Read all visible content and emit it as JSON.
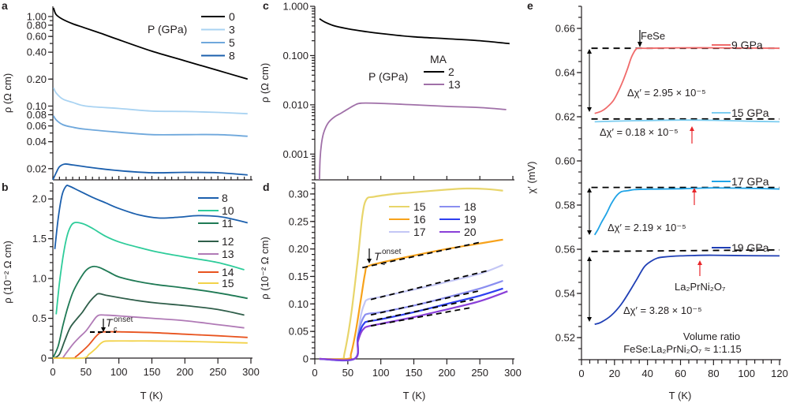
{
  "chart_data": [
    {
      "panel": "a",
      "type": "line",
      "xlabel": "T (K)",
      "ylabel": "ρ (Ω cm)",
      "yscale": "log",
      "xlim": [
        0,
        300
      ],
      "ylim": [
        0.015,
        1.3
      ],
      "yticks": [
        "1.00",
        "0.80",
        "0.60",
        "0.40",
        "0.20",
        "0.10",
        "0.08",
        "0.06",
        "0.04",
        "0.02"
      ],
      "ytick_values": [
        1.0,
        0.8,
        0.6,
        0.4,
        0.2,
        0.1,
        0.08,
        0.06,
        0.04,
        0.02
      ],
      "legend_title": "P (GPa)",
      "legend_position": "top-right",
      "series": [
        {
          "name": "0",
          "color": "#000000",
          "x": [
            1,
            5,
            15,
            30,
            50,
            75,
            100,
            150,
            200,
            250,
            295
          ],
          "y": [
            1.25,
            1.05,
            0.93,
            0.83,
            0.74,
            0.64,
            0.55,
            0.41,
            0.32,
            0.25,
            0.2
          ]
        },
        {
          "name": "3",
          "color": "#a9d3f2",
          "x": [
            1,
            5,
            15,
            30,
            50,
            100,
            150,
            200,
            250,
            295
          ],
          "y": [
            0.16,
            0.14,
            0.12,
            0.11,
            0.1,
            0.094,
            0.088,
            0.087,
            0.085,
            0.082
          ]
        },
        {
          "name": "5",
          "color": "#6fa8dc",
          "x": [
            1,
            5,
            15,
            30,
            50,
            100,
            150,
            200,
            250,
            295
          ],
          "y": [
            0.078,
            0.07,
            0.062,
            0.058,
            0.055,
            0.051,
            0.048,
            0.048,
            0.048,
            0.046
          ]
        },
        {
          "name": "8",
          "color": "#1b5fad",
          "x": [
            0,
            5,
            10,
            18,
            30,
            60,
            100,
            150,
            200,
            250,
            295
          ],
          "y": [
            0.015,
            0.018,
            0.021,
            0.0225,
            0.022,
            0.0205,
            0.019,
            0.018,
            0.0182,
            0.018,
            0.017
          ]
        }
      ]
    },
    {
      "panel": "b",
      "type": "line",
      "xlabel": "T (K)",
      "ylabel": "ρ (10⁻² Ω cm)",
      "xlim": [
        0,
        300
      ],
      "ylim": [
        0,
        2.2
      ],
      "xticks": [
        "0",
        "50",
        "100",
        "150",
        "200",
        "250",
        "300"
      ],
      "yticks": [
        "0",
        "0.5",
        "1.0",
        "1.5",
        "2.0"
      ],
      "legend_position": "right",
      "annotation": "T_c^onset",
      "series": [
        {
          "name": "8",
          "color": "#1b5fad",
          "x": [
            3,
            8,
            14,
            20,
            25,
            40,
            60,
            80,
            100,
            130,
            160,
            190,
            220,
            250,
            270,
            295
          ],
          "y": [
            1.37,
            1.75,
            2.05,
            2.16,
            2.16,
            2.1,
            2.02,
            1.95,
            1.88,
            1.8,
            1.76,
            1.77,
            1.79,
            1.78,
            1.75,
            1.7
          ]
        },
        {
          "name": "10",
          "color": "#2ecc9a",
          "x": [
            5,
            10,
            15,
            20,
            25,
            32,
            45,
            60,
            80,
            100,
            130,
            160,
            200,
            250,
            290
          ],
          "y": [
            0.55,
            0.95,
            1.25,
            1.48,
            1.62,
            1.7,
            1.69,
            1.63,
            1.53,
            1.46,
            1.39,
            1.33,
            1.27,
            1.2,
            1.11
          ]
        },
        {
          "name": "11",
          "color": "#1f7a55",
          "x": [
            0,
            8,
            15,
            22,
            30,
            40,
            50,
            60,
            70,
            85,
            100,
            130,
            160,
            200,
            250,
            295
          ],
          "y": [
            0,
            0.15,
            0.4,
            0.62,
            0.82,
            0.98,
            1.1,
            1.15,
            1.14,
            1.08,
            1.02,
            0.96,
            0.92,
            0.88,
            0.82,
            0.75
          ]
        },
        {
          "name": "12",
          "color": "#2f5e4a",
          "x": [
            2,
            10,
            18,
            26,
            35,
            45,
            55,
            65,
            70,
            80,
            100,
            130,
            160,
            200,
            250,
            290
          ],
          "y": [
            0,
            0.05,
            0.22,
            0.38,
            0.48,
            0.58,
            0.7,
            0.79,
            0.81,
            0.79,
            0.76,
            0.72,
            0.69,
            0.66,
            0.61,
            0.54
          ]
        },
        {
          "name": "13",
          "color": "#b07ab6",
          "x": [
            15,
            20,
            30,
            40,
            50,
            58,
            65,
            70,
            80,
            100,
            150,
            200,
            250,
            290
          ],
          "y": [
            0,
            0.06,
            0.17,
            0.26,
            0.34,
            0.43,
            0.51,
            0.54,
            0.54,
            0.53,
            0.5,
            0.47,
            0.42,
            0.38
          ]
        },
        {
          "name": "14",
          "color": "#e8531e",
          "x": [
            0,
            30,
            35,
            45,
            55,
            65,
            72,
            80,
            100,
            150,
            200,
            250,
            295
          ],
          "y": [
            0,
            0,
            0.02,
            0.09,
            0.17,
            0.27,
            0.32,
            0.33,
            0.33,
            0.32,
            0.3,
            0.28,
            0.26
          ]
        },
        {
          "name": "15",
          "color": "#f2d24a",
          "x": [
            0,
            45,
            55,
            65,
            72,
            78,
            90,
            120,
            150,
            200,
            250,
            295
          ],
          "y": [
            0,
            0,
            0.05,
            0.12,
            0.18,
            0.21,
            0.215,
            0.215,
            0.215,
            0.21,
            0.2,
            0.19
          ]
        }
      ]
    },
    {
      "panel": "c",
      "type": "line",
      "xlabel": "",
      "ylabel": "ρ (Ω cm)",
      "yscale": "log",
      "xlim": [
        0,
        300
      ],
      "ylim": [
        0.0003,
        1.0
      ],
      "yticks": [
        "1.000",
        "0.100",
        "0.010",
        "0.001"
      ],
      "ytick_values": [
        1.0,
        0.1,
        0.01,
        0.001
      ],
      "legend_title": "P (GPa)",
      "legend_subtitle": "MA",
      "legend_position": "center-right",
      "series": [
        {
          "name": "2",
          "color": "#000000",
          "x": [
            7,
            15,
            30,
            50,
            75,
            100,
            150,
            200,
            250,
            295
          ],
          "y": [
            0.56,
            0.48,
            0.4,
            0.35,
            0.31,
            0.28,
            0.24,
            0.22,
            0.2,
            0.175
          ]
        },
        {
          "name": "13",
          "color": "#a070a8",
          "x": [
            7,
            8,
            10,
            13,
            17,
            22,
            30,
            40,
            50,
            60,
            70,
            100,
            150,
            200,
            250,
            290
          ],
          "y": [
            0.0003,
            0.0008,
            0.0016,
            0.0026,
            0.0036,
            0.0046,
            0.0057,
            0.0068,
            0.0082,
            0.0098,
            0.0108,
            0.0107,
            0.01,
            0.0093,
            0.0088,
            0.008
          ]
        }
      ]
    },
    {
      "panel": "d",
      "type": "line",
      "xlabel": "T (K)",
      "ylabel": "ρ (10⁻² Ω cm)",
      "xlim": [
        0,
        300
      ],
      "ylim": [
        0,
        0.32
      ],
      "xticks": [
        "0",
        "50",
        "100",
        "150",
        "200",
        "250",
        "300"
      ],
      "yticks": [
        "0",
        "0.05",
        "0.10",
        "0.15",
        "0.20",
        "0.25",
        "0.30"
      ],
      "legend_position": "top-right",
      "annotation": "T_c^onset",
      "series": [
        {
          "name": "15",
          "color": "#e8d56a",
          "x": [
            7,
            40,
            45,
            55,
            65,
            72,
            78,
            90,
            120,
            150,
            200,
            230,
            260,
            285
          ],
          "y": [
            0,
            0,
            0.01,
            0.08,
            0.18,
            0.26,
            0.29,
            0.295,
            0.3,
            0.303,
            0.308,
            0.31,
            0.309,
            0.306
          ]
        },
        {
          "name": "16",
          "color": "#f7a21b",
          "x": [
            7,
            50,
            55,
            62,
            70,
            76,
            80,
            100,
            150,
            200,
            250,
            285
          ],
          "y": [
            0,
            0,
            0.01,
            0.05,
            0.11,
            0.155,
            0.168,
            0.175,
            0.188,
            0.2,
            0.21,
            0.217
          ]
        },
        {
          "name": "17",
          "color": "#c3c6f5",
          "x": [
            7,
            60,
            65,
            70,
            75,
            80,
            100,
            150,
            200,
            250,
            285
          ],
          "y": [
            0,
            0,
            0.04,
            0.08,
            0.1,
            0.108,
            0.113,
            0.126,
            0.14,
            0.155,
            0.171
          ]
        },
        {
          "name": "18",
          "color": "#8a8ef0",
          "x": [
            7,
            60,
            65,
            70,
            75,
            80,
            100,
            150,
            200,
            250,
            285
          ],
          "y": [
            0,
            0,
            0.04,
            0.065,
            0.078,
            0.082,
            0.085,
            0.097,
            0.112,
            0.128,
            0.142
          ]
        },
        {
          "name": "19",
          "color": "#2e3ff0",
          "x": [
            7,
            60,
            65,
            70,
            75,
            80,
            100,
            150,
            200,
            250,
            285
          ],
          "y": [
            0,
            0,
            0.035,
            0.055,
            0.065,
            0.068,
            0.072,
            0.085,
            0.1,
            0.115,
            0.128
          ]
        },
        {
          "name": "20",
          "color": "#8a3fd8",
          "x": [
            7,
            60,
            65,
            70,
            75,
            80,
            100,
            150,
            200,
            250,
            292
          ],
          "y": [
            0,
            0,
            0.03,
            0.048,
            0.056,
            0.059,
            0.064,
            0.076,
            0.09,
            0.105,
            0.123
          ]
        }
      ],
      "fits": [
        {
          "x": [
            72,
            250
          ],
          "y": [
            0.166,
            0.212
          ]
        },
        {
          "x": [
            85,
            260
          ],
          "y": [
            0.108,
            0.16
          ]
        },
        {
          "x": [
            85,
            250
          ],
          "y": [
            0.08,
            0.124
          ]
        },
        {
          "x": [
            80,
            240
          ],
          "y": [
            0.068,
            0.108
          ]
        },
        {
          "x": [
            85,
            240
          ],
          "y": [
            0.06,
            0.094
          ]
        }
      ]
    },
    {
      "panel": "e",
      "type": "line",
      "xlabel": "T (K)",
      "ylabel": "χ′ (mV)",
      "xlim": [
        0,
        120
      ],
      "ylim": [
        0.51,
        0.67
      ],
      "xticks": [
        "0",
        "20",
        "40",
        "60",
        "80",
        "100",
        "120"
      ],
      "yticks": [
        "0.52",
        "0.54",
        "0.56",
        "0.58",
        "0.60",
        "0.62",
        "0.64",
        "0.66"
      ],
      "legend_position": "inline-right",
      "series": [
        {
          "name": "9 GPa",
          "color": "#f06a6a",
          "x": [
            8,
            12,
            15,
            19,
            22,
            25,
            28,
            30,
            32,
            33,
            34,
            40,
            60,
            80,
            100,
            120
          ],
          "y": [
            0.6215,
            0.6225,
            0.624,
            0.627,
            0.631,
            0.636,
            0.642,
            0.6465,
            0.6495,
            0.6505,
            0.651,
            0.651,
            0.6512,
            0.6512,
            0.6511,
            0.651
          ]
        },
        {
          "name": "15 GPa",
          "color": "#7ccdf0",
          "x": [
            8,
            20,
            40,
            60,
            80,
            100,
            120
          ],
          "y": [
            0.6177,
            0.618,
            0.6183,
            0.6185,
            0.6184,
            0.618,
            0.6177
          ]
        },
        {
          "name": "17 GPa",
          "color": "#1fa3e6",
          "x": [
            8,
            10,
            12,
            15,
            18,
            21,
            24,
            28,
            32,
            40,
            50,
            60,
            70,
            80,
            100,
            120
          ],
          "y": [
            0.5665,
            0.569,
            0.572,
            0.576,
            0.5805,
            0.584,
            0.586,
            0.5865,
            0.587,
            0.5872,
            0.5873,
            0.5874,
            0.5876,
            0.5878,
            0.5876,
            0.5873
          ]
        },
        {
          "name": "19 GPa",
          "color": "#1f3fb5",
          "x": [
            8,
            12,
            18,
            24,
            30,
            34,
            38,
            42,
            46,
            50,
            60,
            70,
            80,
            100,
            120
          ],
          "y": [
            0.526,
            0.527,
            0.53,
            0.535,
            0.542,
            0.547,
            0.552,
            0.5545,
            0.556,
            0.5565,
            0.557,
            0.5572,
            0.5573,
            0.5571,
            0.557
          ]
        }
      ],
      "reference_lines": [
        0.651,
        0.619,
        0.588,
        0.559
      ],
      "annotations": [
        "FeSe",
        "Δχ′ = 2.95 × 10⁻⁵",
        "Δχ′ = 0.18 × 10⁻⁵",
        "Δχ′ = 2.19 × 10⁻⁵",
        "Δχ′ = 3.28 × 10⁻⁵",
        "La₂PrNi₂O₇",
        "Volume ratio",
        "FeSe:La₂PrNi₂O₇ ≈ 1:1.15"
      ]
    }
  ],
  "labels": {
    "panel_a": "a",
    "panel_b": "b",
    "panel_c": "c",
    "panel_d": "d",
    "panel_e": "e",
    "a_ylabel": "ρ (Ω cm)",
    "b_ylabel": "ρ (10⁻² Ω cm)",
    "c_ylabel": "ρ (Ω cm)",
    "d_ylabel": "ρ (10⁻² Ω cm)",
    "e_ylabel": "χ′ (mV)",
    "xlabel": "T (K)",
    "a_legend_title": "P (GPa)",
    "c_legend_title": "P (GPa)",
    "c_legend_sub": "MA",
    "tc_main": "T",
    "tc_sub": "c",
    "tc_sup": "onset",
    "e_fese": "FeSe",
    "e_d1": "Δχ′ = 2.95 × 10⁻⁵",
    "e_d2": "Δχ′ = 0.18 × 10⁻⁵",
    "e_d3": "Δχ′ = 2.19 × 10⁻⁵",
    "e_d4": "Δχ′ = 3.28 × 10⁻⁵",
    "e_lpno": "La₂PrNi₂O₇",
    "e_vol1": "Volume ratio",
    "e_vol2": "FeSe:La₂PrNi₂O₇ ≈ 1:1.15"
  }
}
